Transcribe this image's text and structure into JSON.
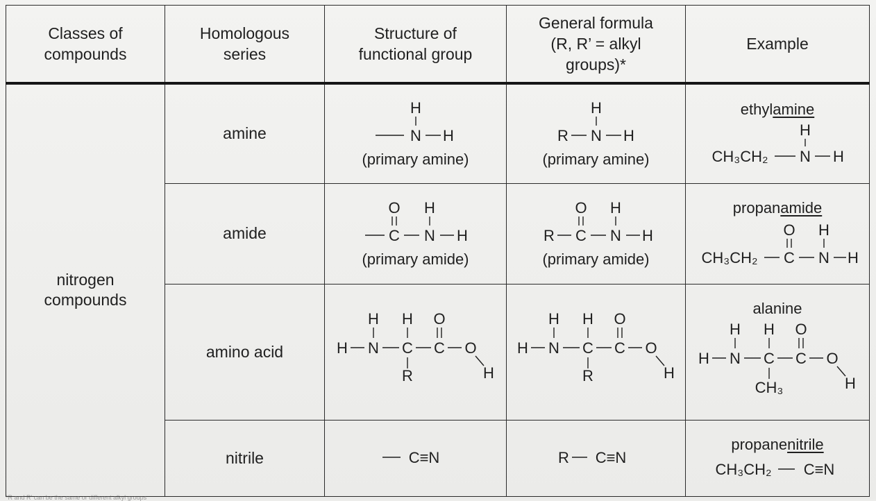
{
  "headers": {
    "classes": [
      "Classes of",
      "compounds"
    ],
    "series": [
      "Homologous",
      "series"
    ],
    "structure": [
      "Structure of",
      "functional group"
    ],
    "general": [
      "General formula",
      "(R, R’ = alkyl",
      "groups)*"
    ],
    "example": [
      "Example"
    ]
  },
  "class_name": [
    "nitrogen",
    "compounds"
  ],
  "rows": [
    {
      "series": "amine",
      "structure_caption": "(primary amine)",
      "general_caption": "(primary amine)",
      "example_name_prefix": "ethyl",
      "example_name_underlined": "amine"
    },
    {
      "series": "amide",
      "structure_caption": "(primary amide)",
      "general_caption": "(primary amide)",
      "example_name_prefix": "propan",
      "example_name_underlined": "amide"
    },
    {
      "series": "amino acid",
      "example_name_prefix": "alanine",
      "example_name_underlined": ""
    },
    {
      "series": "nitrile",
      "example_name_prefix": "propane",
      "example_name_underlined": "nitrile"
    }
  ],
  "atoms": {
    "H": "H",
    "N": "N",
    "C": "C",
    "O": "O",
    "R": "R",
    "ethyl": "CH₃CH₂",
    "methyl": "CH₃",
    "nitrile_group": "C≡N"
  },
  "footnote": "*R and R' can be the same or different alkyl groups"
}
